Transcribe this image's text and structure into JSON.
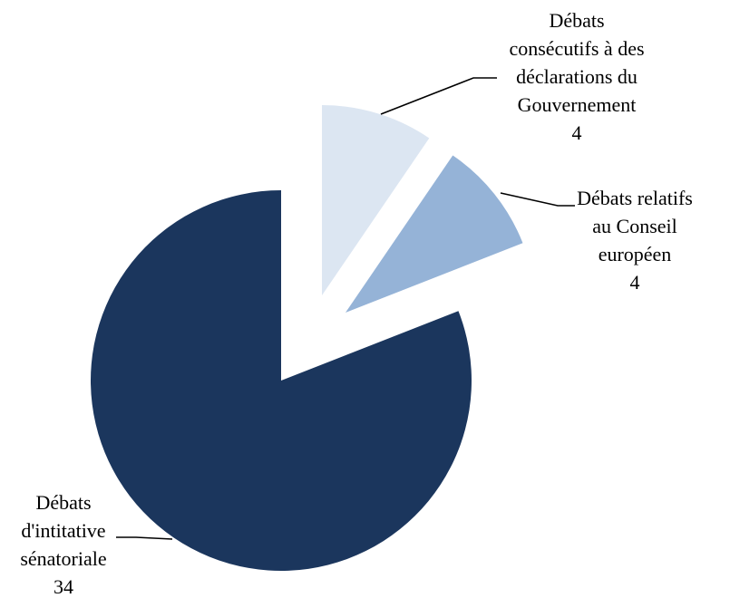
{
  "chart_data": {
    "type": "pie",
    "title": "",
    "series": [
      {
        "name": "",
        "slices": [
          {
            "label_lines": [
              "Débats",
              "consécutifs à des",
              "déclarations du",
              "Gouvernement"
            ],
            "value": 4,
            "color": "#dce6f2"
          },
          {
            "label_lines": [
              "Débats relatifs",
              "au Conseil",
              "européen"
            ],
            "value": 4,
            "color": "#95b3d7"
          },
          {
            "label_lines": [
              "Débats",
              "d'intitative",
              "sénatoriale"
            ],
            "value": 34,
            "color": "#1b365d"
          }
        ]
      }
    ],
    "start_angle": "12 o'clock",
    "direction": "clockwise",
    "exploded_slices": [
      0,
      1
    ],
    "legend": "none",
    "data_labels": "outside, with leader lines"
  }
}
